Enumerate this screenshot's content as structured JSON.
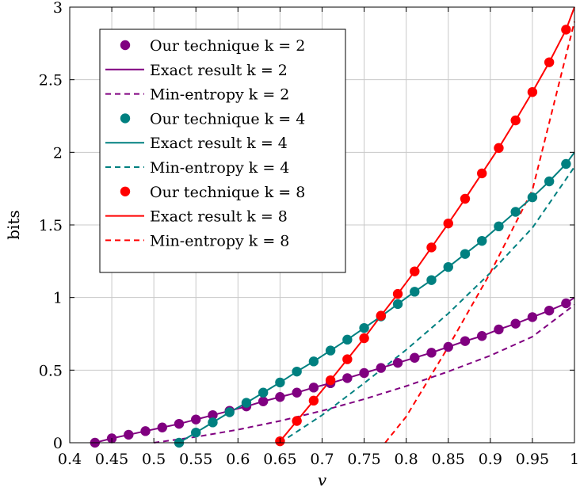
{
  "chart_data": {
    "type": "line",
    "title": "",
    "xlabel": "v",
    "ylabel": "bits",
    "xlim": [
      0.4,
      1.0
    ],
    "ylim": [
      0,
      3
    ],
    "grid": true,
    "legend_position": "top-left",
    "x_ticks": [
      "0.4",
      "0.45",
      "0.5",
      "0.55",
      "0.6",
      "0.65",
      "0.7",
      "0.75",
      "0.8",
      "0.85",
      "0.9",
      "0.95",
      "1"
    ],
    "y_ticks": [
      "0",
      "0.5",
      "1",
      "1.5",
      "2",
      "2.5",
      "3"
    ],
    "series": [
      {
        "name": "Our technique k = 2",
        "style": "markers",
        "color": "#800080",
        "x": [
          0.43,
          0.45,
          0.47,
          0.49,
          0.51,
          0.53,
          0.55,
          0.57,
          0.59,
          0.61,
          0.63,
          0.65,
          0.67,
          0.69,
          0.71,
          0.73,
          0.75,
          0.77,
          0.79,
          0.81,
          0.83,
          0.85,
          0.87,
          0.89,
          0.91,
          0.93,
          0.95,
          0.97,
          0.99
        ],
        "y": [
          0.0,
          0.03,
          0.055,
          0.08,
          0.105,
          0.13,
          0.16,
          0.19,
          0.22,
          0.25,
          0.285,
          0.315,
          0.345,
          0.38,
          0.41,
          0.445,
          0.48,
          0.515,
          0.55,
          0.585,
          0.62,
          0.66,
          0.7,
          0.735,
          0.78,
          0.82,
          0.865,
          0.91,
          0.96
        ]
      },
      {
        "name": "Exact result k = 2",
        "style": "solid",
        "color": "#800080",
        "x": [
          0.43,
          0.45,
          0.47,
          0.49,
          0.51,
          0.53,
          0.55,
          0.57,
          0.59,
          0.61,
          0.63,
          0.65,
          0.67,
          0.69,
          0.71,
          0.73,
          0.75,
          0.77,
          0.79,
          0.81,
          0.83,
          0.85,
          0.87,
          0.89,
          0.91,
          0.93,
          0.95,
          0.97,
          0.99,
          1.0
        ],
        "y": [
          0.0,
          0.03,
          0.055,
          0.08,
          0.105,
          0.13,
          0.16,
          0.19,
          0.22,
          0.25,
          0.285,
          0.315,
          0.345,
          0.38,
          0.41,
          0.445,
          0.48,
          0.515,
          0.55,
          0.585,
          0.62,
          0.66,
          0.7,
          0.735,
          0.78,
          0.82,
          0.865,
          0.91,
          0.96,
          1.0
        ]
      },
      {
        "name": "Min-entropy k = 2",
        "style": "dashed",
        "color": "#800080",
        "x": [
          0.5,
          0.55,
          0.6,
          0.65,
          0.7,
          0.75,
          0.8,
          0.85,
          0.9,
          0.95,
          1.0
        ],
        "y": [
          0.0,
          0.04,
          0.09,
          0.15,
          0.22,
          0.3,
          0.39,
          0.49,
          0.6,
          0.73,
          0.95
        ]
      },
      {
        "name": "Our technique k = 4",
        "style": "markers",
        "color": "#008080",
        "x": [
          0.53,
          0.55,
          0.57,
          0.59,
          0.61,
          0.63,
          0.65,
          0.67,
          0.69,
          0.71,
          0.73,
          0.75,
          0.77,
          0.79,
          0.81,
          0.83,
          0.85,
          0.87,
          0.89,
          0.91,
          0.93,
          0.95,
          0.97,
          0.99
        ],
        "y": [
          0.0,
          0.07,
          0.14,
          0.21,
          0.275,
          0.345,
          0.415,
          0.49,
          0.56,
          0.635,
          0.71,
          0.79,
          0.87,
          0.955,
          1.04,
          1.12,
          1.21,
          1.3,
          1.39,
          1.49,
          1.59,
          1.69,
          1.8,
          1.92
        ]
      },
      {
        "name": "Exact result k = 4",
        "style": "solid",
        "color": "#008080",
        "x": [
          0.53,
          0.55,
          0.57,
          0.59,
          0.61,
          0.63,
          0.65,
          0.67,
          0.69,
          0.71,
          0.73,
          0.75,
          0.77,
          0.79,
          0.81,
          0.83,
          0.85,
          0.87,
          0.89,
          0.91,
          0.93,
          0.95,
          0.97,
          0.99,
          1.0
        ],
        "y": [
          0.0,
          0.07,
          0.14,
          0.21,
          0.275,
          0.345,
          0.415,
          0.49,
          0.56,
          0.635,
          0.71,
          0.79,
          0.87,
          0.955,
          1.04,
          1.12,
          1.21,
          1.3,
          1.39,
          1.49,
          1.59,
          1.69,
          1.8,
          1.92,
          2.0
        ]
      },
      {
        "name": "Min-entropy k = 4",
        "style": "dashed",
        "color": "#008080",
        "x": [
          0.65,
          0.7,
          0.75,
          0.8,
          0.85,
          0.9,
          0.95,
          1.0
        ],
        "y": [
          0.0,
          0.19,
          0.41,
          0.64,
          0.89,
          1.17,
          1.48,
          1.9
        ]
      },
      {
        "name": "Our technique k = 8",
        "style": "markers",
        "color": "#ff0000",
        "x": [
          0.65,
          0.67,
          0.69,
          0.71,
          0.73,
          0.75,
          0.77,
          0.79,
          0.81,
          0.83,
          0.85,
          0.87,
          0.89,
          0.91,
          0.93,
          0.95,
          0.97,
          0.99
        ],
        "y": [
          0.01,
          0.15,
          0.29,
          0.43,
          0.575,
          0.72,
          0.875,
          1.025,
          1.18,
          1.345,
          1.51,
          1.68,
          1.855,
          2.03,
          2.22,
          2.415,
          2.62,
          2.845
        ]
      },
      {
        "name": "Exact result k = 8",
        "style": "solid",
        "color": "#ff0000",
        "x": [
          0.65,
          0.67,
          0.69,
          0.71,
          0.73,
          0.75,
          0.77,
          0.79,
          0.81,
          0.83,
          0.85,
          0.87,
          0.89,
          0.91,
          0.93,
          0.95,
          0.97,
          0.99,
          1.0
        ],
        "y": [
          0.01,
          0.15,
          0.29,
          0.43,
          0.575,
          0.72,
          0.875,
          1.025,
          1.18,
          1.345,
          1.51,
          1.68,
          1.855,
          2.03,
          2.22,
          2.415,
          2.62,
          2.845,
          3.0
        ]
      },
      {
        "name": "Min-entropy k = 8",
        "style": "dashed",
        "color": "#ff0000",
        "x": [
          0.775,
          0.8,
          0.85,
          0.9,
          0.95,
          1.0
        ],
        "y": [
          0.0,
          0.18,
          0.66,
          1.17,
          1.74,
          2.9
        ]
      }
    ],
    "legend": [
      {
        "label": "Our technique k = 2",
        "style": "markers",
        "color": "#800080"
      },
      {
        "label": "Exact result k = 2",
        "style": "solid",
        "color": "#800080"
      },
      {
        "label": "Min-entropy k = 2",
        "style": "dashed",
        "color": "#800080"
      },
      {
        "label": "Our technique k = 4",
        "style": "markers",
        "color": "#008080"
      },
      {
        "label": "Exact result k = 4",
        "style": "solid",
        "color": "#008080"
      },
      {
        "label": "Min-entropy k = 4",
        "style": "dashed",
        "color": "#008080"
      },
      {
        "label": "Our technique k = 8",
        "style": "markers",
        "color": "#ff0000"
      },
      {
        "label": "Exact result k = 8",
        "style": "solid",
        "color": "#ff0000"
      },
      {
        "label": "Min-entropy k = 8",
        "style": "dashed",
        "color": "#ff0000"
      }
    ]
  }
}
